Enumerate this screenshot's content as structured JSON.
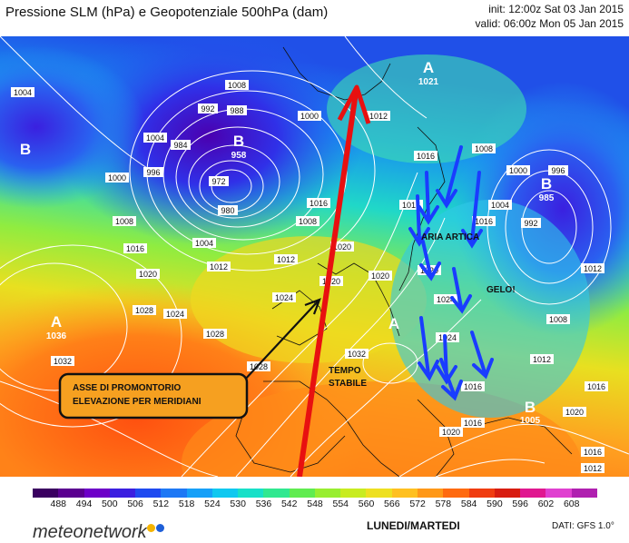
{
  "header": {
    "title": "Pressione SLM (hPa) e Geopotenziale 500hPa (dam)",
    "init": "init: 12:00z Sat 03 Jan 2015",
    "valid": "valid: 06:00z Mon 05 Jan 2015"
  },
  "pressure_centers": [
    {
      "id": "high-atlantic",
      "letter": "A",
      "value": "1036",
      "color": "#ffffff"
    },
    {
      "id": "high-arctic",
      "letter": "A",
      "value": "1021",
      "color": "#ffffff"
    },
    {
      "id": "low-iceland",
      "letter": "B",
      "value": "958",
      "color": "#ffffff"
    },
    {
      "id": "low-russia",
      "letter": "B",
      "value": "985",
      "color": "#ffffff"
    },
    {
      "id": "high-alps",
      "letter": "A",
      "value": "",
      "color": "#ffffff"
    },
    {
      "id": "low-turkey",
      "letter": "B",
      "value": "1005",
      "color": "#ffffff"
    },
    {
      "id": "low-west",
      "letter": "B",
      "value": "",
      "color": "#ffffff"
    }
  ],
  "isobar_labels": [
    "1004",
    "1008",
    "1000",
    "992",
    "988",
    "984",
    "1004",
    "1012",
    "1016",
    "996",
    "972",
    "980",
    "1004",
    "1000",
    "1008",
    "1016",
    "1020",
    "1012",
    "1012",
    "1024",
    "1028",
    "1024",
    "1032",
    "1028",
    "1032",
    "1016",
    "1020",
    "1020",
    "1024",
    "1008",
    "1004",
    "1000",
    "996",
    "1016",
    "992",
    "1008",
    "1012",
    "1012",
    "1016",
    "1016",
    "1020",
    "1024",
    "1028",
    "1016",
    "1020",
    "1016",
    "1020",
    "1020",
    "1016",
    "1008",
    "1012"
  ],
  "annotations": {
    "box_line1": "ASSE DI PROMONTORIO",
    "box_line2": "ELEVAZIONE PER MERIDIANI",
    "tempo_line1": "TEMPO",
    "tempo_line2": "STABILE",
    "aria_artica": "ARIA ARTICA",
    "gelo": "GELO!"
  },
  "legend": {
    "values": [
      "488",
      "494",
      "500",
      "506",
      "512",
      "518",
      "524",
      "530",
      "536",
      "542",
      "548",
      "554",
      "560",
      "566",
      "572",
      "578",
      "584",
      "590",
      "596",
      "602",
      "608"
    ],
    "colors": [
      "#3a0060",
      "#5a0090",
      "#6d00c8",
      "#3b1fe0",
      "#1f4af0",
      "#1e78f5",
      "#17a0f8",
      "#10c8f0",
      "#18e0c8",
      "#30e890",
      "#60ec50",
      "#98ee30",
      "#c8ec20",
      "#eee020",
      "#ffc020",
      "#ff9818",
      "#ff6a10",
      "#f03c10",
      "#d81c10",
      "#e01890",
      "#e040d0",
      "#b020b0"
    ]
  },
  "footer": {
    "brand": "meteonetwork",
    "day": "LUNEDI/MARTEDI",
    "source": "DATI:  GFS  1.0°"
  },
  "colors": {
    "arrow_main": "#e81010",
    "arrows_cold": "#1a3cff",
    "isobars": "#ffffff"
  }
}
